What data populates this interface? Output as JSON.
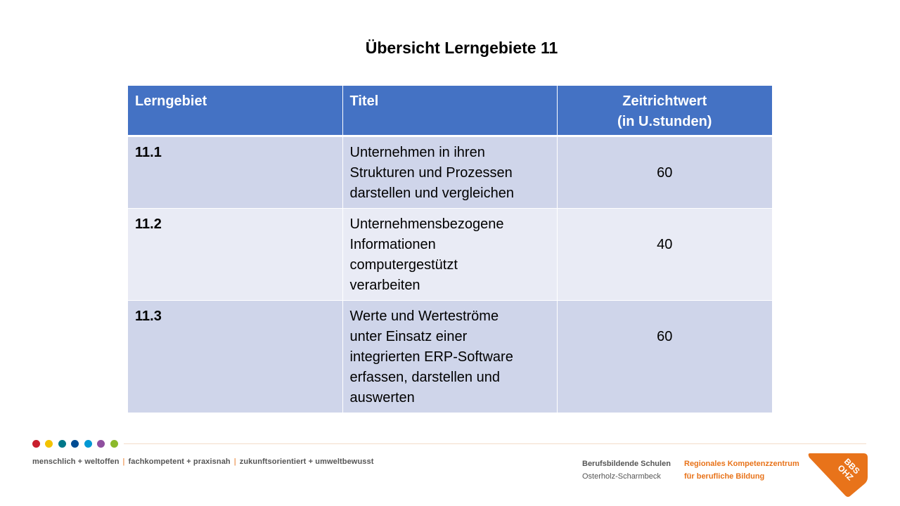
{
  "slide": {
    "title": "Übersicht Lerngebiete 11"
  },
  "table": {
    "headers": {
      "col1": "Lerngebiet",
      "col2": "Titel",
      "col3_line1": "Zeitrichtwert",
      "col3_line2": "(in U.stunden)"
    },
    "rows": [
      {
        "id": "11.1",
        "title_lines": [
          "Unternehmen in ihren",
          "Strukturen und Prozessen",
          "darstellen und vergleichen"
        ],
        "hours": "60"
      },
      {
        "id": "11.2",
        "title_lines": [
          "Unternehmensbezogene",
          "Informationen",
          "computergestützt",
          "verarbeiten"
        ],
        "hours": "40"
      },
      {
        "id": "11.3",
        "title_lines": [
          "Werte und Werteströme",
          "unter Einsatz einer",
          "integrierten ERP-Software",
          "erfassen, darstellen und",
          "auswerten"
        ],
        "hours": "60"
      }
    ]
  },
  "footer": {
    "dot_colors": [
      "#c81f2d",
      "#f3c300",
      "#00788a",
      "#004c93",
      "#0098d4",
      "#8f4f9f",
      "#8bb92b"
    ],
    "slogan": {
      "part1": "menschlich + weltoffen",
      "separator": "|",
      "part2": "fachkompetent + praxisnah",
      "part3": "zukunftsorientiert + umweltbewusst"
    },
    "school_line1": "Berufsbildende Schulen",
    "school_line2": "Osterholz-Scharmbeck",
    "center_line1": "Regionales Kompetenzzentrum",
    "center_line2": "für berufliche Bildung",
    "logo_line1": "BBS",
    "logo_line2": "OHZ",
    "accent_color": "#e8731a"
  }
}
